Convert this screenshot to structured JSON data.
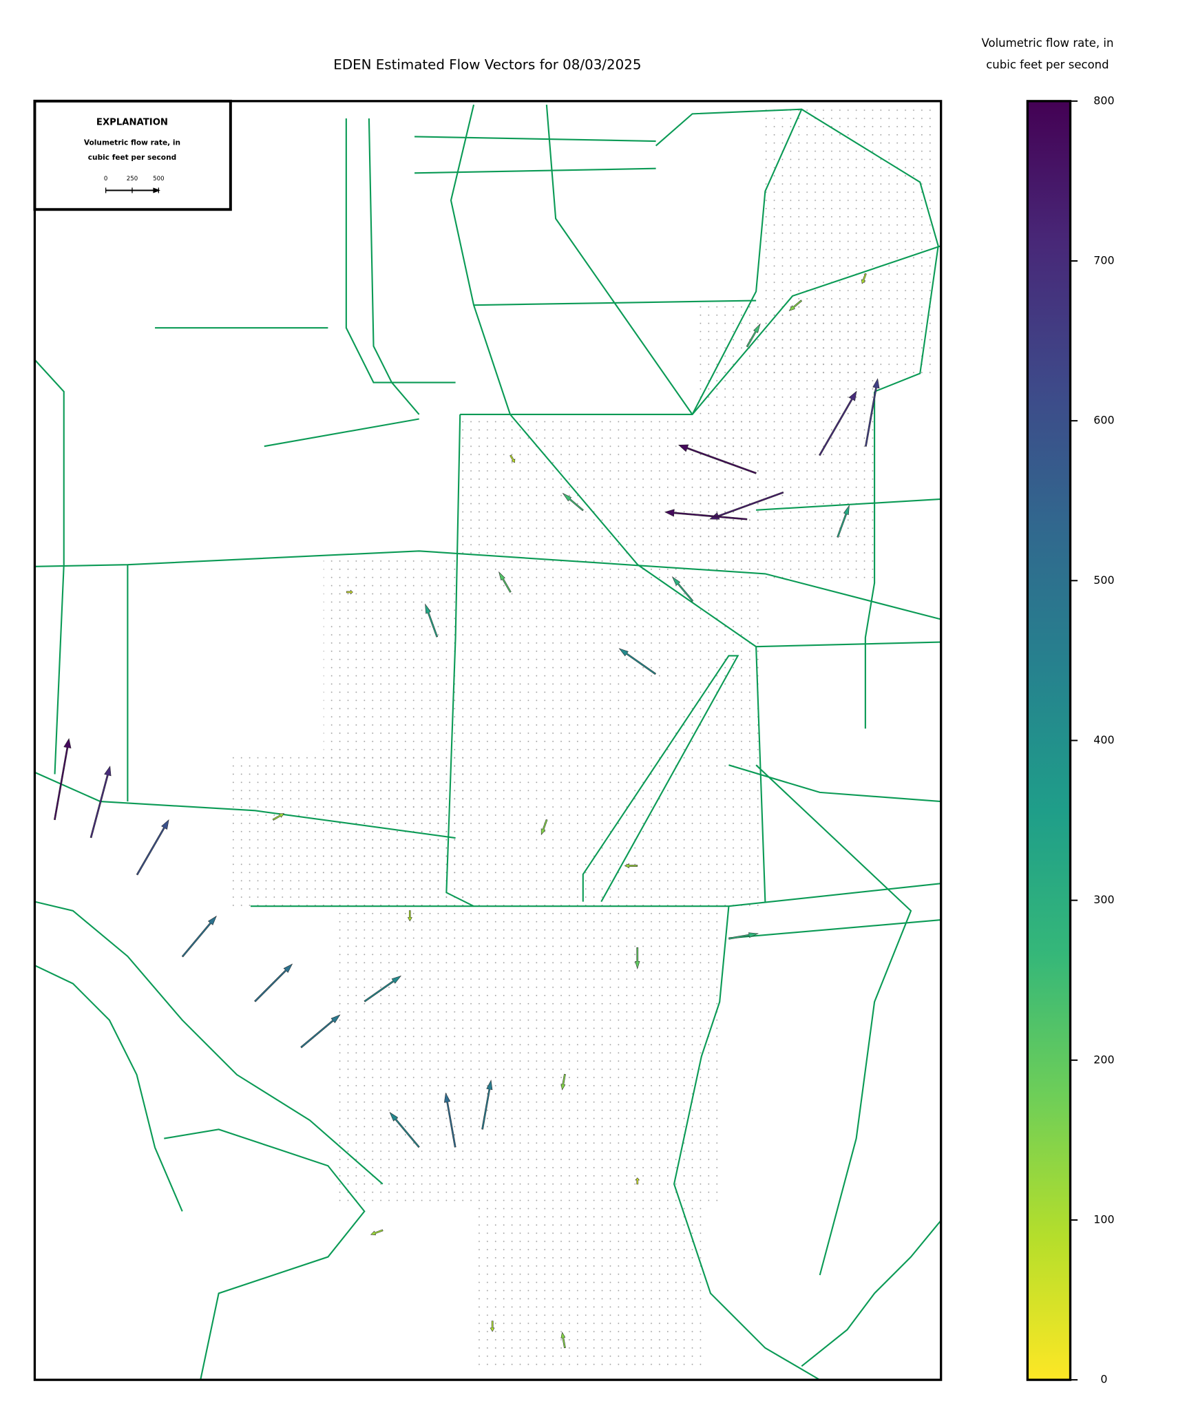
{
  "chart_data": {
    "type": "quiver",
    "title": "EDEN Estimated Flow Vectors for 08/03/2025",
    "colorbar_label": [
      "Volumetric flow rate, in",
      "cubic feet per second"
    ],
    "colormap": "viridis",
    "reverse_colormap": true,
    "clim": [
      0,
      800
    ],
    "cticks": [
      0,
      100,
      200,
      300,
      400,
      500,
      600,
      700,
      800
    ],
    "explanation": {
      "title": "EXPLANATION",
      "label": [
        "Volumetric flow rate, in",
        "cubic feet per second"
      ],
      "scale_ticks": [
        0,
        250,
        500
      ]
    },
    "x": [
      0.796,
      0.866,
      0.917,
      0.826,
      0.786,
      0.022,
      0.062,
      0.113,
      0.163,
      0.243,
      0.294,
      0.364,
      0.464,
      0.494,
      0.424,
      0.685,
      0.444,
      0.726,
      0.605,
      0.886,
      0.766,
      0.665,
      0.525,
      0.786,
      0.846,
      0.565,
      0.665,
      0.585,
      0.505,
      0.585,
      0.384,
      0.344,
      0.525,
      0.917,
      0.263,
      0.414,
      0.665
    ],
    "y": [
      0.291,
      0.277,
      0.27,
      0.306,
      0.327,
      0.562,
      0.576,
      0.605,
      0.669,
      0.704,
      0.74,
      0.704,
      0.818,
      0.804,
      0.818,
      0.448,
      0.419,
      0.391,
      0.32,
      0.341,
      0.655,
      0.662,
      0.384,
      0.192,
      0.156,
      0.562,
      0.598,
      0.761,
      0.954,
      0.975,
      0.883,
      0.384,
      0.277,
      0.135,
      0.562,
      0.633,
      0.847
    ],
    "magnitudes": [
      780,
      700,
      650,
      740,
      780,
      780,
      700,
      600,
      500,
      500,
      480,
      420,
      520,
      470,
      430,
      420,
      330,
      300,
      250,
      320,
      280,
      200,
      220,
      250,
      150,
      150,
      120,
      150,
      100,
      150,
      120,
      60,
      80,
      100,
      120,
      100,
      60
    ],
    "angles": [
      160,
      60,
      80,
      200,
      175,
      80,
      75,
      60,
      50,
      45,
      40,
      35,
      100,
      80,
      130,
      145,
      110,
      130,
      140,
      70,
      10,
      270,
      120,
      60,
      220,
      250,
      180,
      260,
      270,
      100,
      200,
      0,
      300,
      250,
      30,
      270,
      90
    ]
  }
}
